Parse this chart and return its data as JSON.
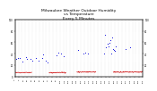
{
  "title": "Milwaukee Weather Outdoor Humidity\nvs Temperature\nEvery 5 Minutes",
  "title_fontsize": 3.2,
  "background_color": "#ffffff",
  "plot_bg_color": "#ffffff",
  "grid_color": "#bbbbbb",
  "blue_color": "#0000dd",
  "red_color": "#cc0000",
  "light_blue_color": "#aaaaff",
  "num_points": 300,
  "marker_size": 0.6,
  "ylim": [
    0,
    100
  ],
  "xlim": [
    0,
    300
  ]
}
